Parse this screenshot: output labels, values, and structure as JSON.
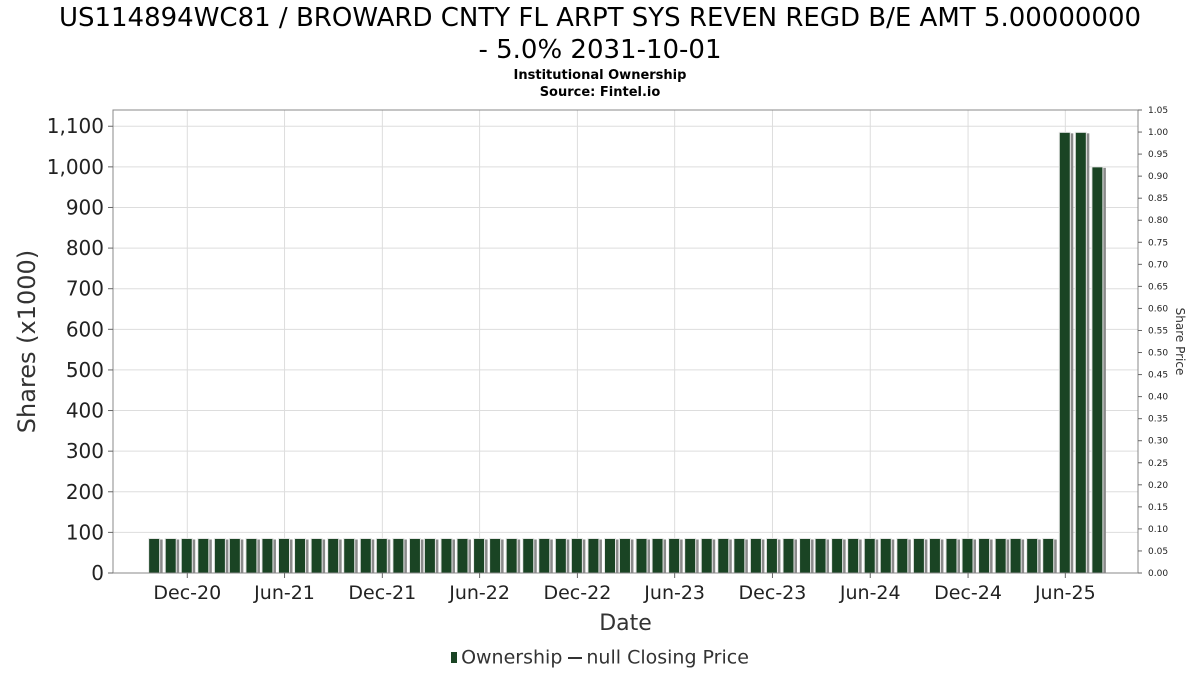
{
  "header": {
    "title_line1": "US114894WC81 / BROWARD CNTY FL ARPT SYS REVEN REGD B/E AMT 5.00000000",
    "title_line2": "- 5.0% 2031-10-01",
    "subtitle1": "Institutional Ownership",
    "subtitle2": "Source: Fintel.io"
  },
  "legend": {
    "ownership_label": "Ownership",
    "price_label": "null Closing Price"
  },
  "colors": {
    "bar": "#1a4424",
    "bar_shadow": "#8a8a8a",
    "grid": "#dddddd",
    "frame": "#888888"
  },
  "chart_data": {
    "type": "bar",
    "xlabel": "Date",
    "ylabel": "Shares (x1000)",
    "y2label": "Share Price",
    "ylim": [
      0,
      1140
    ],
    "y2lim": [
      0,
      1.05
    ],
    "yticks": [
      "0",
      "100",
      "200",
      "300",
      "400",
      "500",
      "600",
      "700",
      "800",
      "900",
      "1,000",
      "1,100"
    ],
    "y2ticks": [
      "0.00",
      "0.05",
      "0.10",
      "0.15",
      "0.20",
      "0.25",
      "0.30",
      "0.35",
      "0.40",
      "0.45",
      "0.50",
      "0.55",
      "0.60",
      "0.65",
      "0.70",
      "0.75",
      "0.80",
      "0.85",
      "0.90",
      "0.95",
      "1.00",
      "1.05"
    ],
    "x_start": "2020-07-15",
    "x_end": "2025-10-15",
    "xticks": [
      {
        "label": "Dec-20",
        "date": "2020-12-01"
      },
      {
        "label": "Jun-21",
        "date": "2021-06-01"
      },
      {
        "label": "Dec-21",
        "date": "2021-12-01"
      },
      {
        "label": "Jun-22",
        "date": "2022-06-01"
      },
      {
        "label": "Dec-22",
        "date": "2022-12-01"
      },
      {
        "label": "Jun-23",
        "date": "2023-06-01"
      },
      {
        "label": "Dec-23",
        "date": "2023-12-01"
      },
      {
        "label": "Jun-24",
        "date": "2024-06-01"
      },
      {
        "label": "Dec-24",
        "date": "2024-12-01"
      },
      {
        "label": "Jun-25",
        "date": "2025-06-01"
      }
    ],
    "grid": true,
    "legend_position": "bottom",
    "series": [
      {
        "name": "Ownership",
        "points": [
          [
            "2020-09-30",
            85
          ],
          [
            "2020-10-31",
            85
          ],
          [
            "2020-11-30",
            85
          ],
          [
            "2020-12-31",
            85
          ],
          [
            "2021-01-31",
            85
          ],
          [
            "2021-02-28",
            85
          ],
          [
            "2021-03-31",
            85
          ],
          [
            "2021-04-30",
            85
          ],
          [
            "2021-05-31",
            85
          ],
          [
            "2021-06-30",
            85
          ],
          [
            "2021-07-31",
            85
          ],
          [
            "2021-08-31",
            85
          ],
          [
            "2021-09-30",
            85
          ],
          [
            "2021-10-31",
            85
          ],
          [
            "2021-11-30",
            85
          ],
          [
            "2021-12-31",
            85
          ],
          [
            "2022-01-31",
            85
          ],
          [
            "2022-02-28",
            85
          ],
          [
            "2022-03-31",
            85
          ],
          [
            "2022-04-30",
            85
          ],
          [
            "2022-05-31",
            85
          ],
          [
            "2022-06-30",
            85
          ],
          [
            "2022-07-31",
            85
          ],
          [
            "2022-08-31",
            85
          ],
          [
            "2022-09-30",
            85
          ],
          [
            "2022-10-31",
            85
          ],
          [
            "2022-11-30",
            85
          ],
          [
            "2022-12-31",
            85
          ],
          [
            "2023-01-31",
            85
          ],
          [
            "2023-02-28",
            85
          ],
          [
            "2023-03-31",
            85
          ],
          [
            "2023-04-30",
            85
          ],
          [
            "2023-05-31",
            85
          ],
          [
            "2023-06-30",
            85
          ],
          [
            "2023-07-31",
            85
          ],
          [
            "2023-08-31",
            85
          ],
          [
            "2023-09-30",
            85
          ],
          [
            "2023-10-31",
            85
          ],
          [
            "2023-11-30",
            85
          ],
          [
            "2023-12-31",
            85
          ],
          [
            "2024-01-31",
            85
          ],
          [
            "2024-02-29",
            85
          ],
          [
            "2024-03-31",
            85
          ],
          [
            "2024-04-30",
            85
          ],
          [
            "2024-05-31",
            85
          ],
          [
            "2024-06-30",
            85
          ],
          [
            "2024-07-31",
            85
          ],
          [
            "2024-08-31",
            85
          ],
          [
            "2024-09-30",
            85
          ],
          [
            "2024-10-31",
            85
          ],
          [
            "2024-11-30",
            85
          ],
          [
            "2024-12-31",
            85
          ],
          [
            "2025-01-31",
            85
          ],
          [
            "2025-02-28",
            85
          ],
          [
            "2025-03-31",
            85
          ],
          [
            "2025-04-30",
            85
          ],
          [
            "2025-05-31",
            1085
          ],
          [
            "2025-06-30",
            1085
          ],
          [
            "2025-07-31",
            1000
          ]
        ]
      }
    ]
  }
}
